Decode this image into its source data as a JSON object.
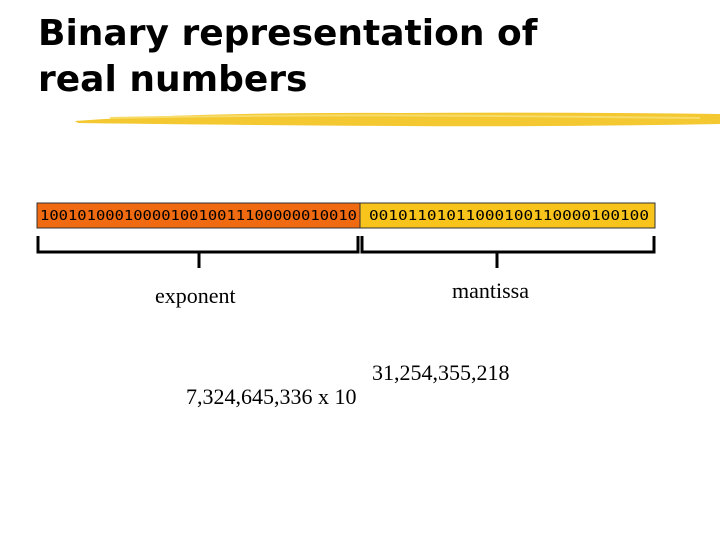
{
  "title_lines": [
    "Binary representation of",
    "real numbers"
  ],
  "bits": {
    "exponent": "1001010001000010010011100000010010",
    "mantissa": "00101101011000100110000100100"
  },
  "labels": {
    "exponent": "exponent",
    "mantissa": "mantissa"
  },
  "formula": {
    "power": "31,254,355,218",
    "base": "7,324,645,336 x 10"
  }
}
